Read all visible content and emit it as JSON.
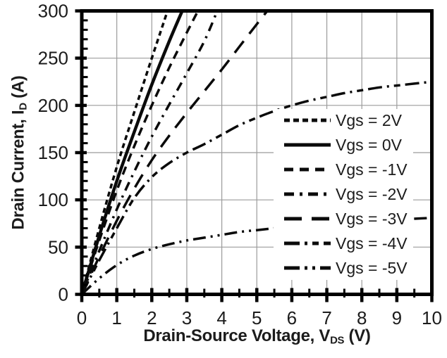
{
  "chart_data": {
    "type": "line",
    "title": "",
    "xlabel": {
      "pre": "Drain-Source Voltage, V",
      "sub": "DS",
      "post": " (V)"
    },
    "ylabel": {
      "pre": "Drain Current, I",
      "sub": "D",
      "post": " (A)"
    },
    "xlim": [
      0,
      10
    ],
    "ylim": [
      0,
      300
    ],
    "x_major_ticks": [
      0,
      1,
      2,
      3,
      4,
      5,
      6,
      7,
      8,
      9,
      10
    ],
    "x_tick_labels": [
      "0",
      "1",
      "2",
      "3",
      "4",
      "5",
      "6",
      "7",
      "8",
      "9",
      "10"
    ],
    "x_minor_step": 0.5,
    "y_major_ticks": [
      0,
      50,
      100,
      150,
      200,
      250,
      300
    ],
    "y_tick_labels": [
      "0",
      "50",
      "100",
      "150",
      "200",
      "250",
      "300"
    ],
    "y_minor_step": 10,
    "grid": true,
    "legend_position": "inside-right",
    "colors": {
      "line": "#0a0a0a",
      "grid": "#9b9b9b",
      "text": "#1c1c1c",
      "frame": "#000000",
      "background": "#ffffff"
    },
    "series": [
      {
        "name": "Vgs = 2V",
        "line_style": "dense-dash",
        "dash": [
          7,
          5
        ],
        "legend_dash": [
          8,
          5
        ],
        "width": 3.5,
        "x": [
          0,
          0.5,
          1.0,
          1.5,
          2.0,
          2.45
        ],
        "y": [
          0,
          70,
          135,
          193,
          250,
          300
        ]
      },
      {
        "name": "Vgs = 0V",
        "line_style": "solid",
        "dash": null,
        "legend_dash": null,
        "width": 4.5,
        "x": [
          0,
          0.5,
          1.0,
          1.5,
          2.0,
          2.5,
          2.87
        ],
        "y": [
          0,
          62,
          120,
          172,
          222,
          268,
          300
        ]
      },
      {
        "name": "Vgs = -1V",
        "line_style": "dash",
        "dash": [
          12,
          8
        ],
        "legend_dash": [
          13,
          9
        ],
        "width": 3.5,
        "x": [
          0,
          0.5,
          1.0,
          1.5,
          2.0,
          2.5,
          3.0,
          3.32
        ],
        "y": [
          0,
          57,
          110,
          157,
          200,
          240,
          277,
          300
        ]
      },
      {
        "name": "Vgs = -2V",
        "line_style": "dash-dot",
        "dash": [
          13,
          8,
          3,
          8
        ],
        "legend_dash": [
          14,
          8,
          4,
          8
        ],
        "width": 3.5,
        "x": [
          0,
          0.5,
          1.0,
          1.5,
          2.0,
          2.5,
          3.0,
          3.5,
          3.87
        ],
        "y": [
          0,
          46,
          90,
          130,
          167,
          201,
          234,
          268,
          300
        ]
      },
      {
        "name": "Vgs = -3V",
        "line_style": "long-dash",
        "dash": [
          21,
          13
        ],
        "legend_dash": [
          25,
          14
        ],
        "width": 3.5,
        "x": [
          0,
          0.5,
          1.0,
          1.5,
          2.0,
          2.5,
          3.0,
          3.5,
          4.0,
          4.5,
          5.0,
          5.3
        ],
        "y": [
          0,
          40,
          78,
          112,
          142,
          168,
          192,
          215,
          238,
          262,
          286,
          300
        ]
      },
      {
        "name": "Vgs = -4V",
        "line_style": "dash-dot-dash",
        "dash": [
          20,
          7,
          3,
          7,
          9,
          7
        ],
        "legend_dash": [
          22,
          7,
          4,
          7,
          9,
          7
        ],
        "width": 3.5,
        "x": [
          0,
          0.5,
          1.0,
          1.5,
          2.0,
          2.5,
          3.0,
          3.5,
          4.0,
          4.5,
          5.0,
          5.5,
          6.0,
          6.5,
          7.0,
          7.5,
          8.0,
          8.5,
          9.0,
          9.5,
          10.0
        ],
        "y": [
          0,
          36,
          70,
          102,
          124,
          139,
          150,
          159,
          169,
          179,
          187,
          194,
          200,
          205,
          209,
          213,
          216,
          219,
          221,
          223,
          225
        ]
      },
      {
        "name": "Vgs = -5V",
        "line_style": "dash-dot-dot",
        "dash": [
          18,
          7,
          3,
          7,
          3,
          7
        ],
        "legend_dash": [
          22,
          7,
          4,
          7,
          4,
          7
        ],
        "width": 3.5,
        "x": [
          0,
          0.5,
          1.0,
          1.5,
          2.0,
          2.5,
          3.0,
          3.5,
          4.0,
          4.5,
          5.0,
          5.5,
          6.0,
          6.5,
          7.0,
          7.5,
          8.0,
          8.5,
          9.0,
          9.5,
          10.0
        ],
        "y": [
          0,
          17,
          31,
          41,
          48,
          53,
          57,
          60,
          63,
          66,
          68,
          70,
          72,
          74,
          75,
          76,
          77,
          78,
          79,
          80,
          81
        ]
      }
    ]
  }
}
